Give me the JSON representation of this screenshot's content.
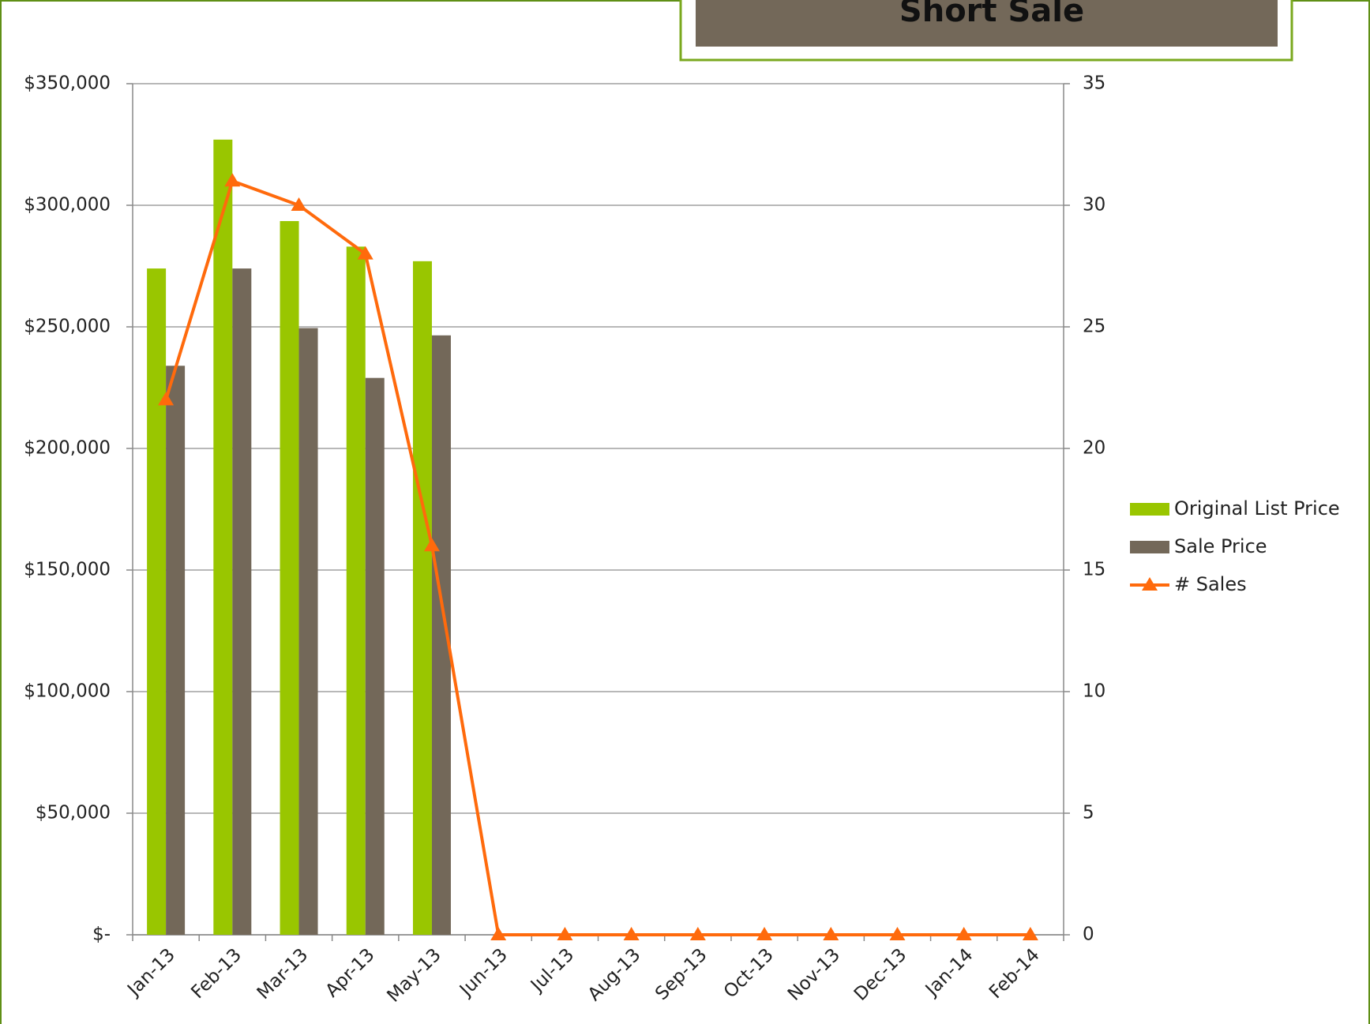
{
  "chart_data": {
    "type": "combo",
    "title": "Short Sale",
    "categories": [
      "Jan-13",
      "Feb-13",
      "Mar-13",
      "Apr-13",
      "May-13",
      "Jun-13",
      "Jul-13",
      "Aug-13",
      "Sep-13",
      "Oct-13",
      "Nov-13",
      "Dec-13",
      "Jan-14",
      "Feb-14"
    ],
    "series": [
      {
        "name": "Original List Price",
        "type": "bar",
        "color": "#99c600",
        "values": [
          274000,
          327000,
          293500,
          283000,
          277000,
          null,
          null,
          null,
          null,
          null,
          null,
          null,
          null,
          null
        ]
      },
      {
        "name": "Sale Price",
        "type": "bar",
        "color": "#736859",
        "values": [
          234000,
          274000,
          249500,
          229000,
          246500,
          null,
          null,
          null,
          null,
          null,
          null,
          null,
          null,
          null
        ]
      },
      {
        "name": "# Sales",
        "type": "line",
        "axis": "y2",
        "color": "#ff6a0c",
        "values": [
          22,
          31,
          30,
          28,
          16,
          0,
          0,
          0,
          0,
          0,
          0,
          0,
          0,
          0
        ]
      }
    ],
    "ylim": [
      0,
      350000
    ],
    "yticks": [
      {
        "value": 0,
        "label": "$-"
      },
      {
        "value": 50000,
        "label": "$50,000"
      },
      {
        "value": 100000,
        "label": "$100,000"
      },
      {
        "value": 150000,
        "label": "$150,000"
      },
      {
        "value": 200000,
        "label": "$200,000"
      },
      {
        "value": 250000,
        "label": "$250,000"
      },
      {
        "value": 300000,
        "label": "$300,000"
      },
      {
        "value": 350000,
        "label": "$350,000"
      }
    ],
    "y2lim": [
      0,
      35
    ],
    "y2ticks": [
      0,
      5,
      10,
      15,
      20,
      25,
      30,
      35
    ],
    "grid": true,
    "legend": "right"
  }
}
